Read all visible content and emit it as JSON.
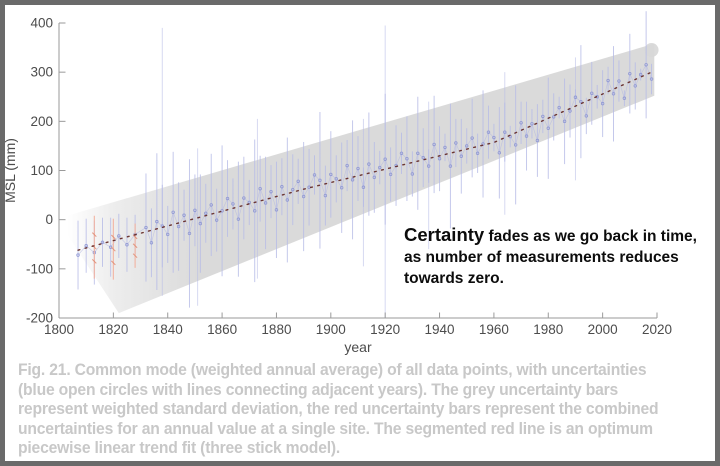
{
  "figure": {
    "annotation": {
      "lead": "Certainty",
      "line1_rest": " fades as we go back in time,",
      "line2": "as number of measurements reduces",
      "line3": "towards zero."
    },
    "caption_lines": [
      "Fig. 21. Common mode (weighted annual average) of all data points, with uncertainties",
      "(blue open circles with lines connecting adjacent years). The grey uncertainty bars",
      "represent weighted standard deviation, the red uncertainty bars represent the combined",
      "uncertainties for an annual value at a single site. The  segmented red line is an optimum",
      "piecewise linear trend fit (three stick model)."
    ]
  },
  "chart_data": {
    "type": "scatter",
    "title": "",
    "xlabel": "year",
    "ylabel": "MSL (mm)",
    "xlim": [
      1800,
      2020
    ],
    "ylim": [
      -200,
      400
    ],
    "xticks": [
      1800,
      1820,
      1840,
      1860,
      1880,
      1900,
      1920,
      1940,
      1960,
      1980,
      2000,
      2020
    ],
    "yticks": [
      -200,
      -100,
      0,
      100,
      200,
      300,
      400
    ],
    "grid": false,
    "annual_mean": {
      "years": [
        1807,
        1810,
        1813,
        1816,
        1819,
        1822,
        1825,
        1828,
        1832,
        1834,
        1836,
        1838,
        1840,
        1842,
        1844,
        1846,
        1848,
        1850,
        1852,
        1854,
        1856,
        1858,
        1860,
        1862,
        1864,
        1866,
        1868,
        1870,
        1872,
        1874,
        1876,
        1878,
        1880,
        1882,
        1884,
        1886,
        1888,
        1890,
        1892,
        1894,
        1896,
        1898,
        1900,
        1902,
        1904,
        1906,
        1908,
        1910,
        1912,
        1914,
        1916,
        1918,
        1920,
        1922,
        1924,
        1926,
        1928,
        1930,
        1932,
        1934,
        1936,
        1938,
        1940,
        1942,
        1944,
        1946,
        1948,
        1950,
        1952,
        1954,
        1956,
        1958,
        1960,
        1962,
        1964,
        1966,
        1968,
        1970,
        1972,
        1974,
        1976,
        1978,
        1980,
        1982,
        1984,
        1986,
        1988,
        1990,
        1992,
        1994,
        1996,
        1998,
        2000,
        2002,
        2004,
        2006,
        2008,
        2010,
        2012,
        2014,
        2016,
        2018
      ],
      "msl": [
        -72,
        -53,
        -67,
        -46,
        -56,
        -33,
        -51,
        -30,
        -16,
        -47,
        -4,
        -13,
        -30,
        15,
        -14,
        9,
        -28,
        19,
        -8,
        13,
        30,
        -1,
        18,
        43,
        32,
        1,
        44,
        35,
        18,
        63,
        34,
        57,
        20,
        67,
        40,
        61,
        78,
        47,
        66,
        91,
        80,
        49,
        92,
        83,
        65,
        110,
        81,
        104,
        66,
        113,
        86,
        106,
        123,
        92,
        110,
        135,
        124,
        93,
        135,
        126,
        109,
        153,
        124,
        147,
        109,
        156,
        129,
        150,
        166,
        135,
        154,
        178,
        167,
        136,
        178,
        169,
        152,
        197,
        170,
        195,
        161,
        210,
        186,
        209,
        228,
        200,
        221,
        249,
        240,
        211,
        257,
        250,
        236,
        283,
        256,
        282,
        247,
        297,
        272,
        295,
        315,
        286
      ],
      "err_half": [
        70,
        55,
        65,
        50,
        60,
        45,
        55,
        40,
        110,
        70,
        139,
        84,
        58,
        123,
        90,
        52,
        151,
        73,
        100,
        60,
        104,
        64,
        133,
        78,
        52,
        117,
        84,
        46,
        145,
        67,
        94,
        54,
        98,
        58,
        127,
        72,
        46,
        111,
        78,
        40,
        139,
        61,
        88,
        48,
        92,
        52,
        121,
        66,
        40,
        105,
        72,
        34,
        133,
        55,
        82,
        42,
        86,
        46,
        115,
        60,
        34,
        99,
        66,
        28,
        127,
        49,
        76,
        36,
        80,
        40,
        109,
        54,
        28,
        93,
        60,
        22,
        121,
        43,
        70,
        30,
        74,
        34,
        103,
        48,
        22,
        87,
        54,
        16,
        115,
        37,
        64,
        24,
        68,
        28,
        97,
        42,
        16,
        81,
        48,
        12,
        109,
        31
      ]
    },
    "outlier_bars": [
      {
        "year": 1838,
        "lo": -155,
        "hi": 390
      },
      {
        "year": 1851,
        "lo": -175,
        "hi": 145
      },
      {
        "year": 1873,
        "lo": -120,
        "hi": 205
      },
      {
        "year": 1912,
        "lo": -95,
        "hi": 205
      },
      {
        "year": 1920,
        "lo": -200,
        "hi": 395
      },
      {
        "year": 1936,
        "lo": -60,
        "hi": 240
      },
      {
        "year": 1964,
        "lo": 10,
        "hi": 300
      },
      {
        "year": 1990,
        "lo": 80,
        "hi": 330
      }
    ],
    "red_uncertainty_bars": [
      {
        "year": 1813,
        "center": -56,
        "half": 64
      },
      {
        "year": 1820,
        "center": -60,
        "half": 62
      },
      {
        "year": 1828,
        "center": -53,
        "half": 45
      }
    ],
    "trend_fit_points": [
      [
        1807,
        -62
      ],
      [
        1890,
        62
      ],
      [
        1960,
        157
      ],
      [
        2018,
        300
      ]
    ],
    "uncertainty_band": {
      "polygon": [
        [
          1803,
          8
        ],
        [
          2019,
          358
        ],
        [
          2019,
          252
        ],
        [
          1822,
          -190
        ],
        [
          1803,
          -30
        ]
      ],
      "fade_from_year": 1803,
      "fade_to_year": 1852
    },
    "colors": {
      "band": "#d7d7d7",
      "blue_bar": "#b6bbe7",
      "blue_circle": "#8a92d2",
      "blue_line": "#b3b8e2",
      "red_bar": "#f3b3a0",
      "red_marker": "#e08a70",
      "trend": "#5f2420",
      "axis": "#9a9a9a",
      "tick_label": "#4c4c4c"
    }
  }
}
